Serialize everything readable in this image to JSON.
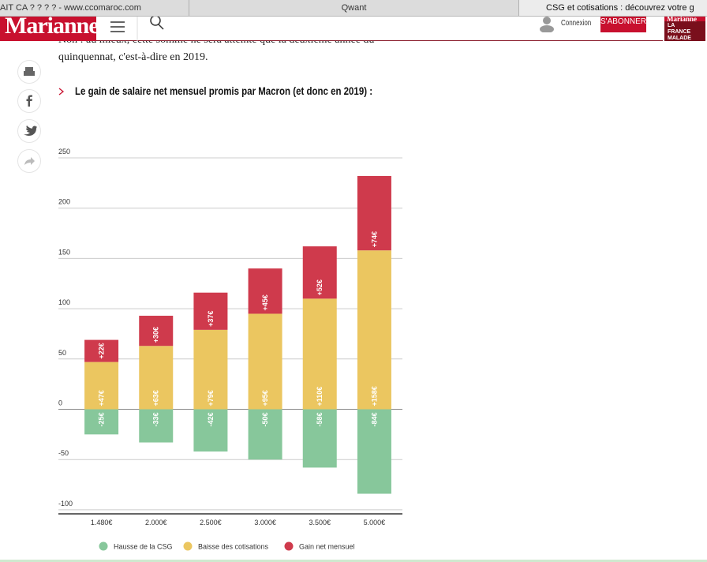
{
  "browser": {
    "tabs": [
      "AIT CA ? ? ? ? - www.ccomaroc.com",
      "Qwant",
      "CSG et cotisations : découvrez votre g"
    ]
  },
  "header": {
    "logo": "Marianne",
    "login": "Connexion",
    "subscribe": "S'ABONNER",
    "magazine_title": "Marianne",
    "magazine_cover": "LA FRANCE MALADE DE"
  },
  "article": {
    "paragraph": "Non : au mieux, cette somme ne sera atteinte que la deuxième année du quinquennat, c'est-à-dire en 2019.",
    "heading": "Le gain de salaire net mensuel promis par Macron (et donc en 2019) :"
  },
  "chart_data": {
    "type": "bar",
    "stacked": true,
    "categories": [
      "1.480€",
      "2.000€",
      "2.500€",
      "3.000€",
      "3.500€",
      "5.000€"
    ],
    "series": [
      {
        "name": "Hausse de la CSG",
        "color": "#87c79b",
        "values": [
          -25,
          -33,
          -42,
          -50,
          -58,
          -84
        ],
        "value_labels": [
          "-25€",
          "-33€",
          "-42€",
          "-50€",
          "-58€",
          "-84€"
        ]
      },
      {
        "name": "Baisse des cotisations",
        "color": "#ebc660",
        "values": [
          47,
          63,
          79,
          95,
          110,
          158
        ],
        "value_labels": [
          "+47€",
          "+63€",
          "+79€",
          "+95€",
          "+110€",
          "+158€"
        ]
      },
      {
        "name": "Gain net mensuel",
        "color": "#cf3a4c",
        "values": [
          22,
          30,
          37,
          45,
          52,
          74
        ],
        "value_labels": [
          "+22€",
          "+30€",
          "+37€",
          "+45€",
          "+52€",
          "+74€"
        ]
      }
    ],
    "ylim": [
      -104,
      250
    ],
    "yticks": [
      -100,
      -50,
      0,
      50,
      100,
      150,
      200,
      250
    ],
    "grid": true,
    "legend": "bottom"
  }
}
